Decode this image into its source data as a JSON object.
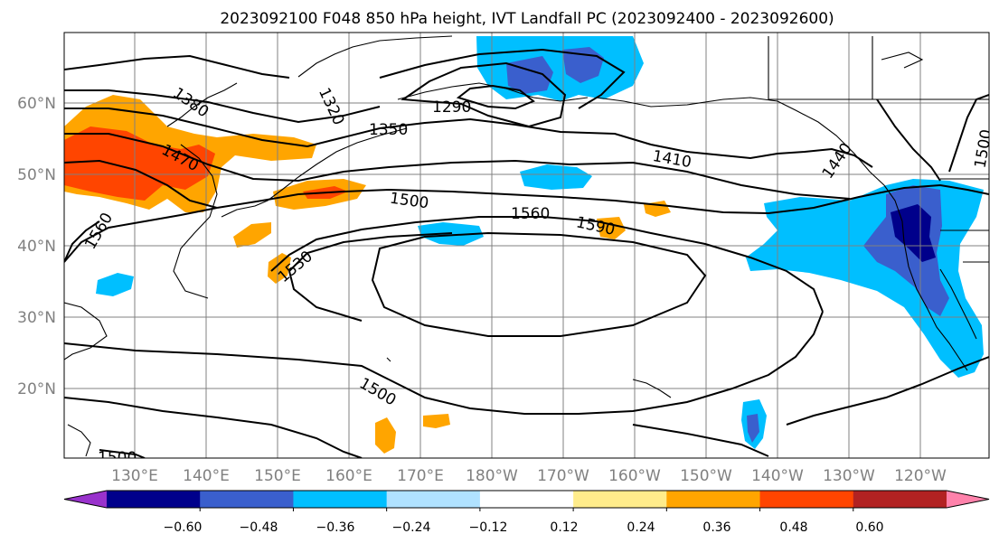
{
  "map": {
    "title": "2023092100 F048 850 hPa height, IVT Landfall PC (2023092400 - 2023092600)",
    "lat_labels": [
      "60°N",
      "50°N",
      "40°N",
      "30°N",
      "20°N"
    ],
    "lon_labels": [
      "130°E",
      "140°E",
      "150°E",
      "160°E",
      "170°E",
      "180°W",
      "170°W",
      "160°W",
      "150°W",
      "140°W",
      "130°W",
      "120°W"
    ],
    "contour_labels": [
      "1320",
      "1290",
      "1380",
      "1350",
      "1470",
      "1410",
      "1440",
      "1500",
      "1560",
      "1500",
      "1560",
      "1590",
      "1530",
      "1500",
      "1500"
    ],
    "colorbar": {
      "colors": [
        "#9932cc",
        "#00008b",
        "#3a5fcd",
        "#00bfff",
        "#b0e2ff",
        "#ffffff",
        "#ffec8b",
        "#ffa500",
        "#ff4500",
        "#b22222",
        "#ff82ab"
      ],
      "tick_labels": [
        "−0.60",
        "−0.48",
        "−0.36",
        "−0.24",
        "−0.12",
        "0.12",
        "0.24",
        "0.36",
        "0.48",
        "0.60"
      ]
    },
    "colors": {
      "contour": "#000000",
      "coast": "#000000",
      "grid": "#808080",
      "axis_label": "#808080"
    }
  }
}
